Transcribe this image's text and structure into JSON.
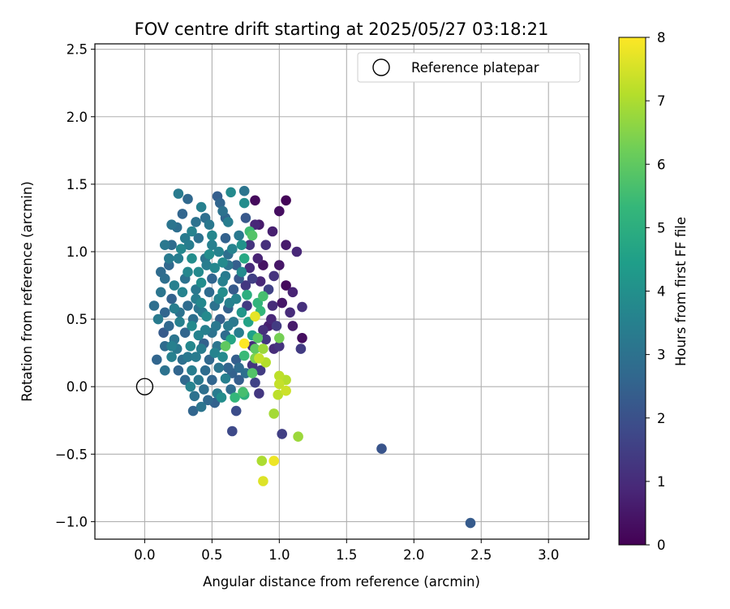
{
  "chart_data": {
    "type": "scatter",
    "title": "FOV centre drift starting at 2025/05/27 03:18:21",
    "xlabel": "Angular distance from reference (arcmin)",
    "ylabel": "Rotation from reference (arcmin)",
    "xlim": [
      -0.37,
      3.3
    ],
    "ylim": [
      -1.13,
      2.54
    ],
    "x_ticks": [
      0.0,
      0.5,
      1.0,
      1.5,
      2.0,
      2.5,
      3.0
    ],
    "x_tick_labels": [
      "0.0",
      "0.5",
      "1.0",
      "1.5",
      "2.0",
      "2.5",
      "3.0"
    ],
    "y_ticks": [
      -1.0,
      -0.5,
      0.0,
      0.5,
      1.0,
      1.5,
      2.0,
      2.5
    ],
    "y_tick_labels": [
      "−1.0",
      "−0.5",
      "0.0",
      "0.5",
      "1.0",
      "1.5",
      "2.0",
      "2.5"
    ],
    "grid": true,
    "legend": {
      "position": "top-right",
      "entries": [
        {
          "label": "Reference platepar",
          "marker": "open-circle"
        }
      ]
    },
    "reference_point": {
      "x": 0.0,
      "y": 0.0
    },
    "colorbar": {
      "label": "Hours from first FF file",
      "range": [
        0,
        8
      ],
      "ticks": [
        0,
        1,
        2,
        3,
        4,
        5,
        6,
        7,
        8
      ],
      "colormap": "viridis"
    },
    "colormap_stops": [
      "#440154",
      "#482878",
      "#3e4989",
      "#31688e",
      "#26828e",
      "#1f9e89",
      "#35b779",
      "#6ece58",
      "#b5de2b",
      "#fde725"
    ],
    "points": [
      [
        0.82,
        1.38,
        0.2
      ],
      [
        1.05,
        1.38,
        0.1
      ],
      [
        1.0,
        1.3,
        0.3
      ],
      [
        1.05,
        1.05,
        0.6
      ],
      [
        1.13,
        1.0,
        0.9
      ],
      [
        1.17,
        0.36,
        0.3
      ],
      [
        1.17,
        0.59,
        1.1
      ],
      [
        1.16,
        0.28,
        1.4
      ],
      [
        1.05,
        0.75,
        0.2
      ],
      [
        1.1,
        0.7,
        0.8
      ],
      [
        1.0,
        0.9,
        0.5
      ],
      [
        0.95,
        0.6,
        1.0
      ],
      [
        0.92,
        0.45,
        0.7
      ],
      [
        0.88,
        0.9,
        0.4
      ],
      [
        0.85,
        1.2,
        0.6
      ],
      [
        0.78,
        1.05,
        1.2
      ],
      [
        0.8,
        0.8,
        1.5
      ],
      [
        0.9,
        0.35,
        1.3
      ],
      [
        1.0,
        0.3,
        1.2
      ],
      [
        0.96,
        0.28,
        1.0
      ],
      [
        1.02,
        -0.35,
        1.5
      ],
      [
        0.85,
        -0.05,
        1.3
      ],
      [
        0.82,
        0.03,
        1.6
      ],
      [
        0.65,
        -0.33,
        1.8
      ],
      [
        0.68,
        -0.18,
        1.9
      ],
      [
        1.76,
        -0.46,
        2.1
      ],
      [
        2.42,
        -1.01,
        2.3
      ],
      [
        0.25,
        1.43,
        3.3
      ],
      [
        0.32,
        1.39,
        2.7
      ],
      [
        0.54,
        1.41,
        2.4
      ],
      [
        0.64,
        1.44,
        3.8
      ],
      [
        0.74,
        1.45,
        3.1
      ],
      [
        0.74,
        1.36,
        3.9
      ],
      [
        0.56,
        1.36,
        2.6
      ],
      [
        0.42,
        1.33,
        3.5
      ],
      [
        0.58,
        1.3,
        3.0
      ],
      [
        0.75,
        1.25,
        2.2
      ],
      [
        0.2,
        1.2,
        3.1
      ],
      [
        0.28,
        1.28,
        2.6
      ],
      [
        0.62,
        1.22,
        3.4
      ],
      [
        0.45,
        1.25,
        2.9
      ],
      [
        0.35,
        1.15,
        3.6
      ],
      [
        0.15,
        1.05,
        3.2
      ],
      [
        0.2,
        1.05,
        2.8
      ],
      [
        0.3,
        1.1,
        3.3
      ],
      [
        0.4,
        1.1,
        3.0
      ],
      [
        0.5,
        1.12,
        3.7
      ],
      [
        0.6,
        1.1,
        2.5
      ],
      [
        0.7,
        1.12,
        3.2
      ],
      [
        0.78,
        1.15,
        5.5
      ],
      [
        0.8,
        1.12,
        5.8
      ],
      [
        0.72,
        1.05,
        4.1
      ],
      [
        0.18,
        0.9,
        2.7
      ],
      [
        0.25,
        0.95,
        3.4
      ],
      [
        0.35,
        0.95,
        3.9
      ],
      [
        0.45,
        0.95,
        3.1
      ],
      [
        0.55,
        1.0,
        3.6
      ],
      [
        0.62,
        0.98,
        2.9
      ],
      [
        0.74,
        0.95,
        4.8
      ],
      [
        0.68,
        0.9,
        2.4
      ],
      [
        0.15,
        0.8,
        2.9
      ],
      [
        0.22,
        0.75,
        3.5
      ],
      [
        0.3,
        0.8,
        3.0
      ],
      [
        0.4,
        0.85,
        3.8
      ],
      [
        0.5,
        0.8,
        2.6
      ],
      [
        0.6,
        0.82,
        3.3
      ],
      [
        0.7,
        0.8,
        2.2
      ],
      [
        0.12,
        0.7,
        3.1
      ],
      [
        0.2,
        0.65,
        2.5
      ],
      [
        0.28,
        0.7,
        3.6
      ],
      [
        0.38,
        0.72,
        3.2
      ],
      [
        0.48,
        0.7,
        2.8
      ],
      [
        0.58,
        0.7,
        3.9
      ],
      [
        0.66,
        0.72,
        2.3
      ],
      [
        0.76,
        0.68,
        5.0
      ],
      [
        0.84,
        0.62,
        5.2
      ],
      [
        0.88,
        0.67,
        5.6
      ],
      [
        0.07,
        0.6,
        2.9
      ],
      [
        0.15,
        0.55,
        2.6
      ],
      [
        0.22,
        0.58,
        3.4
      ],
      [
        0.32,
        0.6,
        2.8
      ],
      [
        0.42,
        0.62,
        3.7
      ],
      [
        0.52,
        0.6,
        3.0
      ],
      [
        0.62,
        0.58,
        2.5
      ],
      [
        0.72,
        0.55,
        4.2
      ],
      [
        0.86,
        0.56,
        5.3
      ],
      [
        0.1,
        0.5,
        3.3
      ],
      [
        0.18,
        0.45,
        2.7
      ],
      [
        0.26,
        0.48,
        3.5
      ],
      [
        0.36,
        0.5,
        2.9
      ],
      [
        0.46,
        0.52,
        3.8
      ],
      [
        0.56,
        0.5,
        2.4
      ],
      [
        0.66,
        0.48,
        3.2
      ],
      [
        0.77,
        0.48,
        4.6
      ],
      [
        0.8,
        0.38,
        4.5
      ],
      [
        0.82,
        0.52,
        7.7
      ],
      [
        0.14,
        0.4,
        2.3
      ],
      [
        0.22,
        0.35,
        3.1
      ],
      [
        0.3,
        0.4,
        2.6
      ],
      [
        0.4,
        0.38,
        3.6
      ],
      [
        0.5,
        0.4,
        3.0
      ],
      [
        0.6,
        0.38,
        2.8
      ],
      [
        0.7,
        0.4,
        3.4
      ],
      [
        1.0,
        0.36,
        6.3
      ],
      [
        0.15,
        0.3,
        2.8
      ],
      [
        0.24,
        0.28,
        3.2
      ],
      [
        0.34,
        0.3,
        3.7
      ],
      [
        0.44,
        0.32,
        2.5
      ],
      [
        0.54,
        0.3,
        3.1
      ],
      [
        0.64,
        0.35,
        4.7
      ],
      [
        0.6,
        0.3,
        6.0
      ],
      [
        0.74,
        0.32,
        8.0
      ],
      [
        0.88,
        0.28,
        6.8
      ],
      [
        0.09,
        0.2,
        2.6
      ],
      [
        0.2,
        0.22,
        3.5
      ],
      [
        0.28,
        0.2,
        2.9
      ],
      [
        0.38,
        0.22,
        3.3
      ],
      [
        0.48,
        0.2,
        2.7
      ],
      [
        0.58,
        0.22,
        3.8
      ],
      [
        0.68,
        0.2,
        2.4
      ],
      [
        0.74,
        0.23,
        5.4
      ],
      [
        0.82,
        0.21,
        6.4
      ],
      [
        0.85,
        0.21,
        7.3
      ],
      [
        0.9,
        0.18,
        7.1
      ],
      [
        0.15,
        0.12,
        3.0
      ],
      [
        0.25,
        0.12,
        2.6
      ],
      [
        0.35,
        0.12,
        3.4
      ],
      [
        0.45,
        0.12,
        2.8
      ],
      [
        0.55,
        0.14,
        3.1
      ],
      [
        0.65,
        0.1,
        2.5
      ],
      [
        0.75,
        0.1,
        2.9
      ],
      [
        0.3,
        0.05,
        2.7
      ],
      [
        0.4,
        0.05,
        3.2
      ],
      [
        0.5,
        0.05,
        2.6
      ],
      [
        0.6,
        0.06,
        3.5
      ],
      [
        0.7,
        0.05,
        2.4
      ],
      [
        0.34,
        0.0,
        3.6
      ],
      [
        0.44,
        -0.02,
        2.9
      ],
      [
        0.54,
        -0.05,
        3.3
      ],
      [
        0.64,
        -0.02,
        2.8
      ],
      [
        0.74,
        -0.06,
        5.1
      ],
      [
        0.37,
        -0.07,
        3.0
      ],
      [
        0.47,
        -0.1,
        2.7
      ],
      [
        0.57,
        -0.08,
        3.9
      ],
      [
        0.67,
        -0.08,
        5.3
      ],
      [
        0.36,
        -0.18,
        2.6
      ],
      [
        0.42,
        -0.15,
        3.1
      ],
      [
        0.52,
        -0.12,
        2.5
      ],
      [
        0.73,
        -0.04,
        5.6
      ],
      [
        1.0,
        0.08,
        7.2
      ],
      [
        1.0,
        0.02,
        7.3
      ],
      [
        1.05,
        0.05,
        7.1
      ],
      [
        1.05,
        -0.03,
        7.4
      ],
      [
        0.99,
        -0.06,
        7.2
      ],
      [
        0.96,
        -0.2,
        6.9
      ],
      [
        1.14,
        -0.37,
        6.8
      ],
      [
        0.87,
        -0.55,
        7.0
      ],
      [
        0.96,
        -0.55,
        7.8
      ],
      [
        0.88,
        -0.7,
        7.6
      ],
      [
        0.46,
        0.9,
        3.4
      ],
      [
        0.52,
        0.88,
        3.7
      ],
      [
        0.42,
        0.77,
        3.9
      ],
      [
        0.55,
        0.65,
        3.6
      ],
      [
        0.35,
        0.45,
        3.8
      ],
      [
        0.45,
        0.42,
        3.5
      ],
      [
        0.27,
        1.02,
        3.7
      ],
      [
        0.5,
        1.05,
        3.5
      ],
      [
        0.33,
        1.05,
        3.4
      ],
      [
        0.65,
        1.02,
        3.6
      ],
      [
        0.72,
        0.85,
        3.8
      ],
      [
        0.43,
        0.55,
        3.3
      ],
      [
        0.53,
        0.45,
        3.2
      ],
      [
        0.63,
        0.62,
        3.5
      ],
      [
        0.32,
        0.85,
        3.7
      ],
      [
        0.58,
        0.92,
        3.8
      ],
      [
        0.48,
        0.98,
        3.9
      ],
      [
        0.38,
        0.65,
        3.4
      ],
      [
        0.62,
        0.45,
        3.3
      ],
      [
        0.52,
        0.25,
        3.6
      ],
      [
        0.42,
        0.28,
        3.4
      ],
      [
        0.32,
        0.22,
        3.2
      ],
      [
        0.58,
        0.78,
        3.5
      ],
      [
        0.68,
        0.65,
        3.6
      ],
      [
        0.78,
        0.88,
        1.0
      ],
      [
        0.86,
        0.78,
        0.9
      ],
      [
        0.92,
        0.72,
        1.6
      ],
      [
        0.96,
        0.82,
        1.2
      ],
      [
        0.84,
        0.95,
        0.8
      ],
      [
        0.9,
        1.05,
        1.1
      ],
      [
        0.94,
        0.5,
        0.9
      ],
      [
        0.98,
        0.45,
        1.4
      ],
      [
        0.88,
        0.42,
        1.1
      ],
      [
        0.8,
        0.3,
        1.0
      ],
      [
        0.86,
        0.12,
        1.4
      ],
      [
        0.8,
        0.16,
        1.2
      ],
      [
        0.75,
        0.75,
        1.3
      ],
      [
        1.1,
        0.45,
        0.6
      ],
      [
        1.02,
        0.62,
        0.5
      ],
      [
        1.08,
        0.55,
        1.0
      ],
      [
        0.95,
        1.15,
        0.7
      ],
      [
        0.82,
        1.2,
        0.9
      ],
      [
        0.76,
        0.6,
        1.4
      ],
      [
        0.6,
        1.25,
        2.6
      ],
      [
        0.48,
        1.2,
        3.2
      ],
      [
        0.38,
        1.22,
        3.0
      ],
      [
        0.24,
        1.18,
        2.9
      ],
      [
        0.18,
        0.95,
        3.3
      ],
      [
        0.12,
        0.85,
        2.8
      ],
      [
        0.2,
        0.3,
        3.5
      ],
      [
        0.62,
        0.14,
        2.6
      ],
      [
        0.7,
        0.14,
        2.8
      ],
      [
        0.26,
        0.55,
        3.0
      ],
      [
        0.4,
        0.58,
        3.1
      ],
      [
        0.62,
        0.9,
        3.1
      ],
      [
        0.8,
        0.1,
        5.8
      ],
      [
        0.82,
        0.28,
        6.0
      ],
      [
        0.84,
        0.36,
        5.9
      ]
    ]
  }
}
